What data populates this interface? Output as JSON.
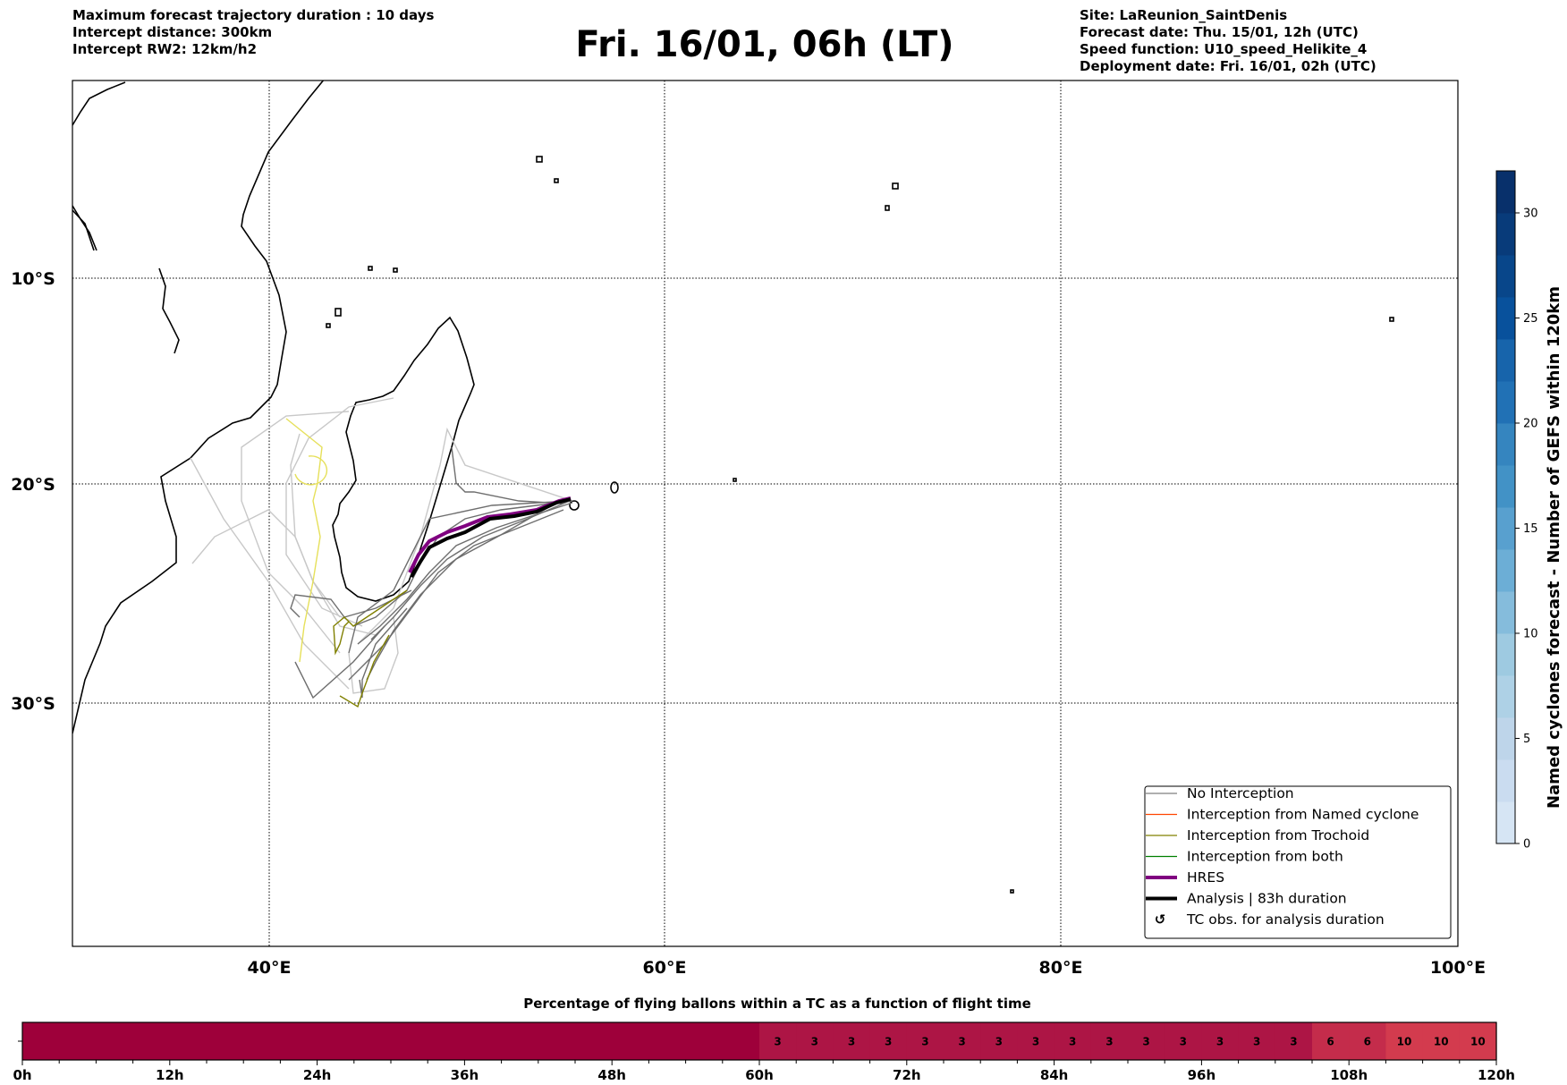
{
  "header": {
    "left": [
      "Maximum forecast trajectory duration : 10 days",
      "Intercept distance: 300km",
      "Intercept RW2: 12km/h2"
    ],
    "title": "Fri. 16/01, 06h (LT)",
    "right": [
      "Site: LaReunion_SaintDenis",
      "Forecast date: Thu. 15/01, 12h (UTC)",
      "Speed function: U10_speed_Helikite_4",
      "Deployment date: Fri. 16/01, 02h (UTC)"
    ]
  },
  "chart_data": [
    {
      "type": "line",
      "title": "Balloon trajectories map",
      "x_ticks": [
        "40°E",
        "60°E",
        "80°E",
        "100°E"
      ],
      "y_ticks": [
        "10°S",
        "20°S",
        "30°S"
      ],
      "xlim": [
        30,
        100
      ],
      "ylim": [
        -40,
        0
      ],
      "grid": true,
      "legend_placement": "bottom-right",
      "legend": [
        {
          "label": "No Interception",
          "color": "#7f7f7f",
          "style": "thin"
        },
        {
          "label": "Interception from Named cyclone",
          "color": "#ff4500",
          "style": "thin"
        },
        {
          "label": "Interception from Trochoid",
          "color": "#808000",
          "style": "thin"
        },
        {
          "label": "Interception from both",
          "color": "#008000",
          "style": "thin"
        },
        {
          "label": "HRES",
          "color": "#800080",
          "style": "thick"
        },
        {
          "label": "Analysis | 83h duration",
          "color": "#000000",
          "style": "thick"
        },
        {
          "label": "TC obs. for analysis duration",
          "color": "#000000",
          "style": "marker",
          "marker": "↺"
        }
      ],
      "site": {
        "name": "LaReunion_SaintDenis",
        "lon": 55.45,
        "lat": -20.9
      }
    },
    {
      "type": "colorbar",
      "label": "Named cyclones forecast - Number of GEFS within 120km",
      "range": [
        0,
        32
      ],
      "ticks": [
        "0",
        "5",
        "10",
        "15",
        "20",
        "25",
        "30"
      ],
      "tick_values": [
        0,
        5,
        10,
        15,
        20,
        25,
        30
      ],
      "colors": [
        "#d6e5f4",
        "#cadcf0",
        "#bed5ea",
        "#aed1e6",
        "#9ecae1",
        "#85bcdc",
        "#6caed6",
        "#58a0cf",
        "#4292c6",
        "#3585bf",
        "#2171b5",
        "#1764ab",
        "#08519c",
        "#08468a",
        "#083b7a",
        "#08306b"
      ]
    },
    {
      "type": "heatmap",
      "title": "Percentage of flying ballons within a TC as a function of flight time",
      "xlim": [
        0,
        120
      ],
      "x_ticks": [
        "0h",
        "12h",
        "24h",
        "36h",
        "48h",
        "60h",
        "72h",
        "84h",
        "96h",
        "108h",
        "120h"
      ],
      "bin_hours": 3,
      "values": [
        0,
        0,
        0,
        0,
        0,
        0,
        0,
        0,
        0,
        0,
        0,
        0,
        0,
        0,
        0,
        0,
        0,
        0,
        0,
        0,
        3,
        3,
        3,
        3,
        3,
        3,
        3,
        3,
        3,
        3,
        3,
        3,
        3,
        3,
        3,
        6,
        6,
        10,
        10,
        10
      ],
      "colors": {
        "0": "#9e003a",
        "3": "#ad1545",
        "6": "#c42c4b",
        "10": "#d33b4e"
      }
    }
  ]
}
